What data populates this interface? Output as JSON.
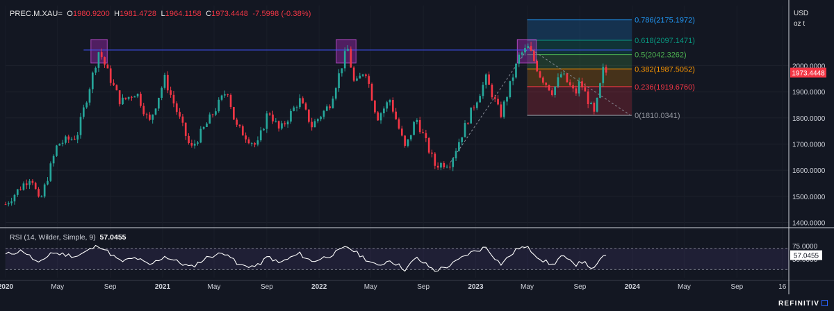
{
  "header": {
    "symbol": "PREC.M.XAU=",
    "open_label": "O",
    "open": "1980.9200",
    "high_label": "H",
    "high": "1981.4728",
    "low_label": "L",
    "low": "1964.1158",
    "close_label": "C",
    "close": "1973.4448",
    "change": "-7.5998 (-0.38%)"
  },
  "units": {
    "line1": "USD",
    "line2": "oz t"
  },
  "rsi": {
    "label": "RSI (14, Wilder, Simple, 9)",
    "value": "57.0455"
  },
  "branding": {
    "name": "REFINITIV"
  },
  "colors": {
    "background": "#131722",
    "up": "#26a69a",
    "down": "#f23645",
    "resistance_line": "#3f51f5",
    "highlight_box": "#9c27b0",
    "rsi_line": "#ffffff"
  },
  "chart_data": [
    {
      "type": "candlestick",
      "title": "PREC.M.XAU=",
      "ylabel": "USD oz t",
      "ylim": [
        1380,
        2230
      ],
      "y_ticks": [
        "1400.0000",
        "1500.0000",
        "1600.0000",
        "1700.0000",
        "1800.0000",
        "1900.0000",
        "2000.0000"
      ],
      "y_tick_values": [
        1400,
        1500,
        1600,
        1700,
        1800,
        1900,
        2000
      ],
      "x_ticks": [
        "2020",
        "May",
        "Sep",
        "2021",
        "May",
        "Sep",
        "2022",
        "May",
        "Sep",
        "2023",
        "May",
        "Sep",
        "2024",
        "May",
        "Sep",
        "16"
      ],
      "x_tick_dates": [
        "2020-01-01",
        "2020-05-01",
        "2020-09-01",
        "2021-01-01",
        "2021-05-01",
        "2021-09-01",
        "2022-01-01",
        "2022-05-01",
        "2022-09-01",
        "2023-01-01",
        "2023-05-01",
        "2023-09-01",
        "2024-01-01",
        "2024-05-01",
        "2024-09-01",
        "2024-12-16"
      ],
      "xlim": [
        "2020-01-01",
        "2024-12-31"
      ],
      "last_price_label": "1973.4448",
      "last_price": 1973.4448,
      "key_points": [
        {
          "date": "2020-01-01",
          "value": 1470
        },
        {
          "date": "2020-03-01",
          "value": 1580
        },
        {
          "date": "2020-03-20",
          "value": 1470
        },
        {
          "date": "2020-05-01",
          "value": 1700
        },
        {
          "date": "2020-06-15",
          "value": 1730
        },
        {
          "date": "2020-08-06",
          "value": 2060
        },
        {
          "date": "2020-09-01",
          "value": 1950
        },
        {
          "date": "2020-09-25",
          "value": 1860
        },
        {
          "date": "2020-11-01",
          "value": 1900
        },
        {
          "date": "2020-12-01",
          "value": 1780
        },
        {
          "date": "2021-01-06",
          "value": 1950
        },
        {
          "date": "2021-03-08",
          "value": 1680
        },
        {
          "date": "2021-04-15",
          "value": 1780
        },
        {
          "date": "2021-06-01",
          "value": 1910
        },
        {
          "date": "2021-06-20",
          "value": 1770
        },
        {
          "date": "2021-08-09",
          "value": 1690
        },
        {
          "date": "2021-09-05",
          "value": 1830
        },
        {
          "date": "2021-10-01",
          "value": 1750
        },
        {
          "date": "2021-11-16",
          "value": 1870
        },
        {
          "date": "2021-12-15",
          "value": 1770
        },
        {
          "date": "2022-01-25",
          "value": 1850
        },
        {
          "date": "2022-03-08",
          "value": 2070
        },
        {
          "date": "2022-03-25",
          "value": 1920
        },
        {
          "date": "2022-04-18",
          "value": 1990
        },
        {
          "date": "2022-05-16",
          "value": 1800
        },
        {
          "date": "2022-06-15",
          "value": 1870
        },
        {
          "date": "2022-07-21",
          "value": 1680
        },
        {
          "date": "2022-08-15",
          "value": 1800
        },
        {
          "date": "2022-09-28",
          "value": 1620
        },
        {
          "date": "2022-11-03",
          "value": 1630
        },
        {
          "date": "2022-12-15",
          "value": 1800
        },
        {
          "date": "2023-01-25",
          "value": 1950
        },
        {
          "date": "2023-02-28",
          "value": 1810
        },
        {
          "date": "2023-04-13",
          "value": 2040
        },
        {
          "date": "2023-05-04",
          "value": 2070
        },
        {
          "date": "2023-06-01",
          "value": 1960
        },
        {
          "date": "2023-06-29",
          "value": 1900
        },
        {
          "date": "2023-07-20",
          "value": 1970
        },
        {
          "date": "2023-08-21",
          "value": 1890
        },
        {
          "date": "2023-09-01",
          "value": 1940
        },
        {
          "date": "2023-10-05",
          "value": 1810
        },
        {
          "date": "2023-10-27",
          "value": 2000
        },
        {
          "date": "2023-11-06",
          "value": 1973.4448
        }
      ],
      "resistance_line": {
        "value": 2060,
        "start": "2020-07-01",
        "end": "2023-12-31"
      },
      "highlight_boxes": [
        {
          "start": "2020-07-18",
          "end": "2020-08-25",
          "bottom": 2010,
          "top": 2100
        },
        {
          "start": "2022-02-10",
          "end": "2022-03-28",
          "bottom": 2010,
          "top": 2100
        },
        {
          "start": "2023-04-08",
          "end": "2023-05-22",
          "bottom": 2010,
          "top": 2100
        }
      ],
      "trend_lines": [
        {
          "from": {
            "date": "2022-11-03",
            "value": 1630
          },
          "to": {
            "date": "2023-05-04",
            "value": 2070
          }
        },
        {
          "from": {
            "date": "2023-05-04",
            "value": 2070
          },
          "to": {
            "date": "2024-01-01",
            "value": 1805
          }
        }
      ],
      "fibonacci": {
        "start": "2023-05-01",
        "end": "2023-12-31",
        "levels": [
          {
            "ratio": "0",
            "value": 1810.0341,
            "label": "0(1810.0341)",
            "color": "#9598a1"
          },
          {
            "ratio": "0.236",
            "value": 1919.676,
            "label": "0.236(1919.6760)",
            "color": "#f23645"
          },
          {
            "ratio": "0.382",
            "value": 1987.5052,
            "label": "0.382(1987.5052)",
            "color": "#ff9800"
          },
          {
            "ratio": "0.5",
            "value": 2042.3262,
            "label": "0.5(2042.3262)",
            "color": "#4caf50"
          },
          {
            "ratio": "0.618",
            "value": 2097.1471,
            "label": "0.618(2097.1471)",
            "color": "#089981"
          },
          {
            "ratio": "0.786",
            "value": 2175.1972,
            "label": "0.786(2175.1972)",
            "color": "#2196f3"
          }
        ]
      }
    },
    {
      "type": "line",
      "title": "RSI (14, Wilder, Simple, 9)",
      "ylim": [
        20,
        80
      ],
      "y_ticks": [
        "75.0000",
        "50.0000"
      ],
      "y_tick_values": [
        75,
        50
      ],
      "bands": [
        70,
        30
      ],
      "last_value_label": "57.0455",
      "last_value": 57.0455,
      "key_points": [
        {
          "date": "2020-01-01",
          "value": 58
        },
        {
          "date": "2020-02-10",
          "value": 66
        },
        {
          "date": "2020-03-20",
          "value": 40
        },
        {
          "date": "2020-04-15",
          "value": 62
        },
        {
          "date": "2020-06-15",
          "value": 55
        },
        {
          "date": "2020-08-06",
          "value": 76
        },
        {
          "date": "2020-09-25",
          "value": 45
        },
        {
          "date": "2020-11-01",
          "value": 52
        },
        {
          "date": "2020-12-01",
          "value": 38
        },
        {
          "date": "2021-01-06",
          "value": 55
        },
        {
          "date": "2021-03-08",
          "value": 34
        },
        {
          "date": "2021-04-20",
          "value": 55
        },
        {
          "date": "2021-06-01",
          "value": 62
        },
        {
          "date": "2021-06-25",
          "value": 38
        },
        {
          "date": "2021-08-09",
          "value": 36
        },
        {
          "date": "2021-09-05",
          "value": 55
        },
        {
          "date": "2021-09-29",
          "value": 42
        },
        {
          "date": "2021-11-16",
          "value": 60
        },
        {
          "date": "2021-12-15",
          "value": 45
        },
        {
          "date": "2022-01-25",
          "value": 56
        },
        {
          "date": "2022-03-08",
          "value": 73
        },
        {
          "date": "2022-04-01",
          "value": 60
        },
        {
          "date": "2022-05-16",
          "value": 36
        },
        {
          "date": "2022-06-15",
          "value": 48
        },
        {
          "date": "2022-07-21",
          "value": 30
        },
        {
          "date": "2022-08-15",
          "value": 52
        },
        {
          "date": "2022-09-28",
          "value": 28
        },
        {
          "date": "2022-11-03",
          "value": 38
        },
        {
          "date": "2022-12-15",
          "value": 60
        },
        {
          "date": "2023-01-25",
          "value": 72
        },
        {
          "date": "2023-02-28",
          "value": 40
        },
        {
          "date": "2023-04-13",
          "value": 72
        },
        {
          "date": "2023-05-04",
          "value": 70
        },
        {
          "date": "2023-06-01",
          "value": 50
        },
        {
          "date": "2023-06-29",
          "value": 38
        },
        {
          "date": "2023-07-20",
          "value": 56
        },
        {
          "date": "2023-08-21",
          "value": 38
        },
        {
          "date": "2023-09-01",
          "value": 48
        },
        {
          "date": "2023-10-05",
          "value": 30
        },
        {
          "date": "2023-10-27",
          "value": 60
        },
        {
          "date": "2023-11-06",
          "value": 57.0455
        }
      ]
    }
  ]
}
